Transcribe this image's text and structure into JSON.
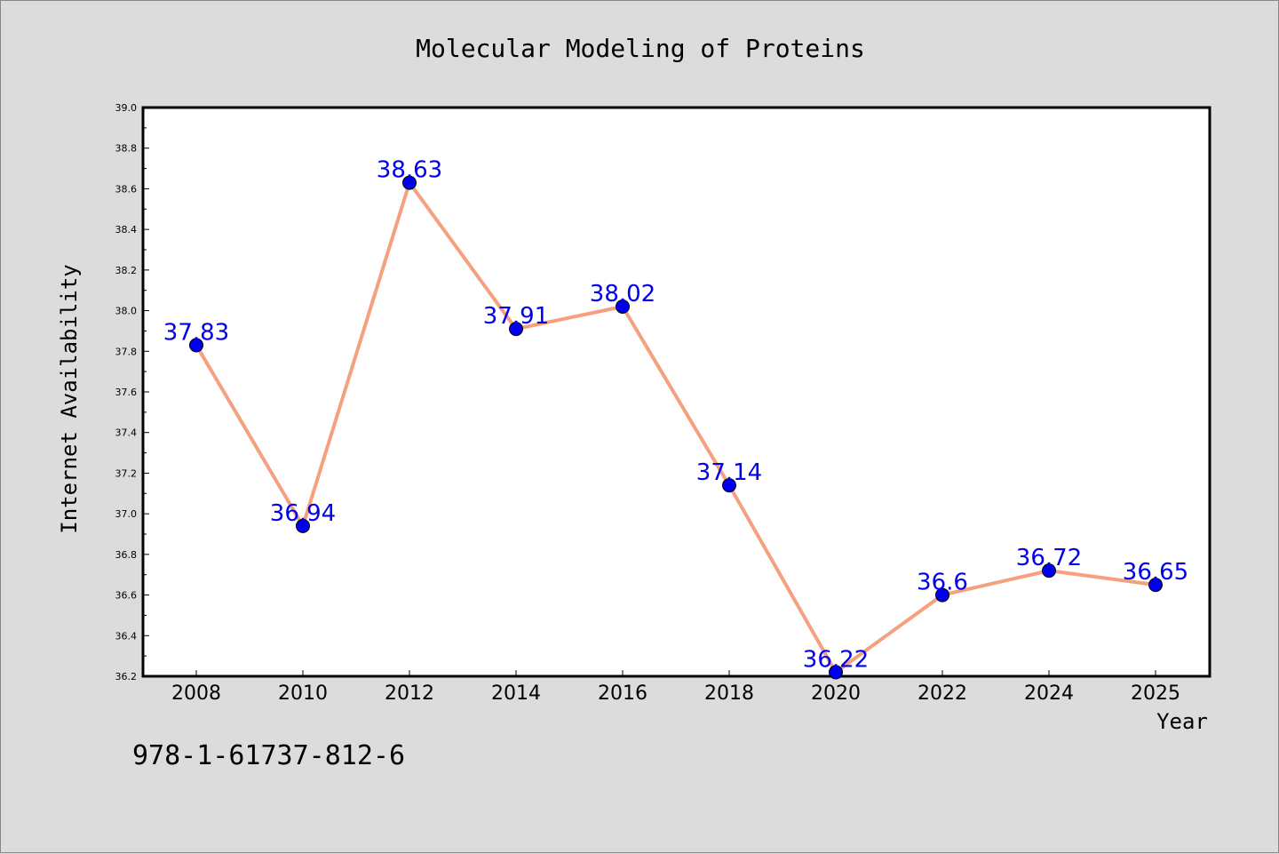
{
  "chart_data": {
    "type": "line",
    "title": "Molecular Modeling of Proteins",
    "xlabel": "Year",
    "ylabel": "Internet Availability",
    "categories": [
      "2008",
      "2010",
      "2012",
      "2014",
      "2016",
      "2018",
      "2020",
      "2022",
      "2024",
      "2025"
    ],
    "series": [
      {
        "values": [
          37.83,
          36.94,
          38.63,
          37.91,
          38.02,
          37.14,
          36.22,
          36.6,
          36.72,
          36.65
        ],
        "data_labels": [
          "37.83",
          "36.94",
          "38.63",
          "37.91",
          "38.02",
          "37.14",
          "36.22",
          "36.6",
          "36.72",
          "36.65"
        ]
      }
    ],
    "ylim": [
      36.2,
      39.0
    ],
    "yticks": [
      "36.2",
      "36.4",
      "36.6",
      "36.8",
      "37.0",
      "37.2",
      "37.4",
      "37.6",
      "37.8",
      "38.0",
      "38.2",
      "38.4",
      "38.6",
      "38.8",
      "39.0"
    ],
    "grid": false,
    "legend": "none",
    "colors": {
      "line": "#f5a07f",
      "marker": "#0000ee",
      "data_label": "#0000ee",
      "background": "#dcdcdc",
      "plot_area": "#ffffff"
    }
  },
  "footnote": "978-1-61737-812-6"
}
